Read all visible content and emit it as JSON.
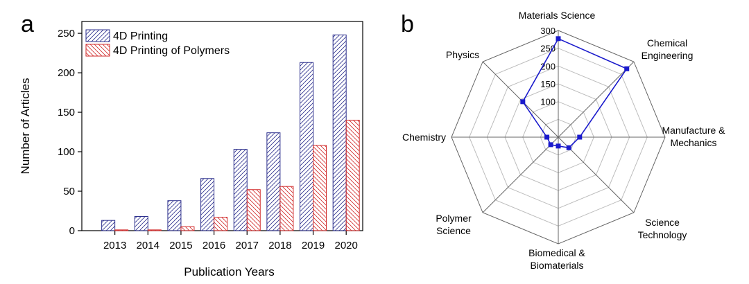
{
  "panels": {
    "a": "a",
    "b": "b"
  },
  "chart_data": [
    {
      "type": "bar",
      "categories": [
        "2013",
        "2014",
        "2015",
        "2016",
        "2017",
        "2018",
        "2019",
        "2020"
      ],
      "series": [
        {
          "name": "4D Printing",
          "color": "#2b2e8c",
          "values": [
            13,
            18,
            38,
            66,
            103,
            124,
            213,
            248
          ]
        },
        {
          "name": "4D Printing of Polymers",
          "color": "#d12a2a",
          "values": [
            1,
            1,
            5,
            17,
            52,
            56,
            108,
            140
          ]
        }
      ],
      "xlabel": "Publication Years",
      "ylabel": "Number of Articles",
      "ylim": [
        0,
        265
      ],
      "yticks": [
        0,
        50,
        100,
        150,
        200,
        250
      ],
      "grid": false,
      "legend": "top-left"
    },
    {
      "type": "radar",
      "axes": [
        "Materials Science",
        "Chemical Engineering",
        "Manufacture & Mechanics",
        "Science Technology",
        "Biomedical & Biomaterials",
        "Polymer Science",
        "Chemistry",
        "Physics"
      ],
      "values": [
        277,
        272,
        60,
        42,
        25,
        30,
        32,
        141
      ],
      "rlim": [
        0,
        300
      ],
      "rticks": [
        100,
        150,
        200,
        250,
        300
      ],
      "color": "#1a1acc"
    }
  ]
}
